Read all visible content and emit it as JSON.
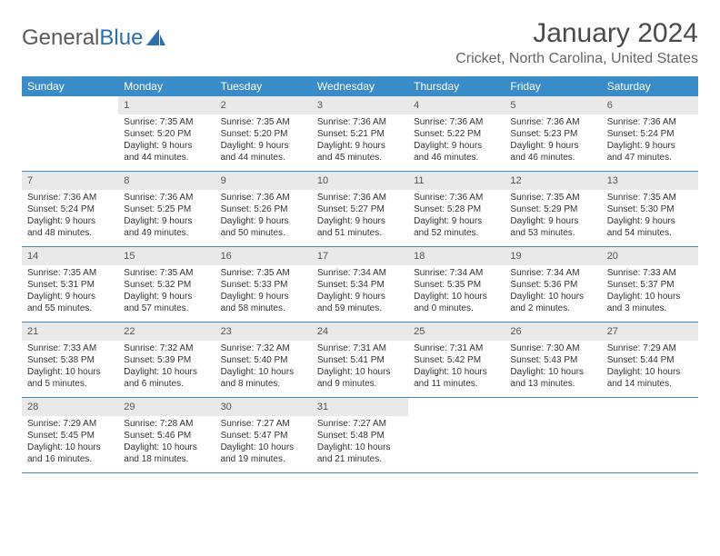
{
  "logo": {
    "text_gray": "General",
    "text_blue": "Blue"
  },
  "title": "January 2024",
  "location": "Cricket, North Carolina, United States",
  "colors": {
    "header_bg": "#3a8cc9",
    "header_text": "#ffffff",
    "daynum_bg": "#e9e9e9",
    "border": "#3a8cc9"
  },
  "day_headers": [
    "Sunday",
    "Monday",
    "Tuesday",
    "Wednesday",
    "Thursday",
    "Friday",
    "Saturday"
  ],
  "weeks": [
    [
      {
        "num": "",
        "sunrise": "",
        "sunset": "",
        "daylight1": "",
        "daylight2": ""
      },
      {
        "num": "1",
        "sunrise": "Sunrise: 7:35 AM",
        "sunset": "Sunset: 5:20 PM",
        "daylight1": "Daylight: 9 hours",
        "daylight2": "and 44 minutes."
      },
      {
        "num": "2",
        "sunrise": "Sunrise: 7:35 AM",
        "sunset": "Sunset: 5:20 PM",
        "daylight1": "Daylight: 9 hours",
        "daylight2": "and 44 minutes."
      },
      {
        "num": "3",
        "sunrise": "Sunrise: 7:36 AM",
        "sunset": "Sunset: 5:21 PM",
        "daylight1": "Daylight: 9 hours",
        "daylight2": "and 45 minutes."
      },
      {
        "num": "4",
        "sunrise": "Sunrise: 7:36 AM",
        "sunset": "Sunset: 5:22 PM",
        "daylight1": "Daylight: 9 hours",
        "daylight2": "and 46 minutes."
      },
      {
        "num": "5",
        "sunrise": "Sunrise: 7:36 AM",
        "sunset": "Sunset: 5:23 PM",
        "daylight1": "Daylight: 9 hours",
        "daylight2": "and 46 minutes."
      },
      {
        "num": "6",
        "sunrise": "Sunrise: 7:36 AM",
        "sunset": "Sunset: 5:24 PM",
        "daylight1": "Daylight: 9 hours",
        "daylight2": "and 47 minutes."
      }
    ],
    [
      {
        "num": "7",
        "sunrise": "Sunrise: 7:36 AM",
        "sunset": "Sunset: 5:24 PM",
        "daylight1": "Daylight: 9 hours",
        "daylight2": "and 48 minutes."
      },
      {
        "num": "8",
        "sunrise": "Sunrise: 7:36 AM",
        "sunset": "Sunset: 5:25 PM",
        "daylight1": "Daylight: 9 hours",
        "daylight2": "and 49 minutes."
      },
      {
        "num": "9",
        "sunrise": "Sunrise: 7:36 AM",
        "sunset": "Sunset: 5:26 PM",
        "daylight1": "Daylight: 9 hours",
        "daylight2": "and 50 minutes."
      },
      {
        "num": "10",
        "sunrise": "Sunrise: 7:36 AM",
        "sunset": "Sunset: 5:27 PM",
        "daylight1": "Daylight: 9 hours",
        "daylight2": "and 51 minutes."
      },
      {
        "num": "11",
        "sunrise": "Sunrise: 7:36 AM",
        "sunset": "Sunset: 5:28 PM",
        "daylight1": "Daylight: 9 hours",
        "daylight2": "and 52 minutes."
      },
      {
        "num": "12",
        "sunrise": "Sunrise: 7:35 AM",
        "sunset": "Sunset: 5:29 PM",
        "daylight1": "Daylight: 9 hours",
        "daylight2": "and 53 minutes."
      },
      {
        "num": "13",
        "sunrise": "Sunrise: 7:35 AM",
        "sunset": "Sunset: 5:30 PM",
        "daylight1": "Daylight: 9 hours",
        "daylight2": "and 54 minutes."
      }
    ],
    [
      {
        "num": "14",
        "sunrise": "Sunrise: 7:35 AM",
        "sunset": "Sunset: 5:31 PM",
        "daylight1": "Daylight: 9 hours",
        "daylight2": "and 55 minutes."
      },
      {
        "num": "15",
        "sunrise": "Sunrise: 7:35 AM",
        "sunset": "Sunset: 5:32 PM",
        "daylight1": "Daylight: 9 hours",
        "daylight2": "and 57 minutes."
      },
      {
        "num": "16",
        "sunrise": "Sunrise: 7:35 AM",
        "sunset": "Sunset: 5:33 PM",
        "daylight1": "Daylight: 9 hours",
        "daylight2": "and 58 minutes."
      },
      {
        "num": "17",
        "sunrise": "Sunrise: 7:34 AM",
        "sunset": "Sunset: 5:34 PM",
        "daylight1": "Daylight: 9 hours",
        "daylight2": "and 59 minutes."
      },
      {
        "num": "18",
        "sunrise": "Sunrise: 7:34 AM",
        "sunset": "Sunset: 5:35 PM",
        "daylight1": "Daylight: 10 hours",
        "daylight2": "and 0 minutes."
      },
      {
        "num": "19",
        "sunrise": "Sunrise: 7:34 AM",
        "sunset": "Sunset: 5:36 PM",
        "daylight1": "Daylight: 10 hours",
        "daylight2": "and 2 minutes."
      },
      {
        "num": "20",
        "sunrise": "Sunrise: 7:33 AM",
        "sunset": "Sunset: 5:37 PM",
        "daylight1": "Daylight: 10 hours",
        "daylight2": "and 3 minutes."
      }
    ],
    [
      {
        "num": "21",
        "sunrise": "Sunrise: 7:33 AM",
        "sunset": "Sunset: 5:38 PM",
        "daylight1": "Daylight: 10 hours",
        "daylight2": "and 5 minutes."
      },
      {
        "num": "22",
        "sunrise": "Sunrise: 7:32 AM",
        "sunset": "Sunset: 5:39 PM",
        "daylight1": "Daylight: 10 hours",
        "daylight2": "and 6 minutes."
      },
      {
        "num": "23",
        "sunrise": "Sunrise: 7:32 AM",
        "sunset": "Sunset: 5:40 PM",
        "daylight1": "Daylight: 10 hours",
        "daylight2": "and 8 minutes."
      },
      {
        "num": "24",
        "sunrise": "Sunrise: 7:31 AM",
        "sunset": "Sunset: 5:41 PM",
        "daylight1": "Daylight: 10 hours",
        "daylight2": "and 9 minutes."
      },
      {
        "num": "25",
        "sunrise": "Sunrise: 7:31 AM",
        "sunset": "Sunset: 5:42 PM",
        "daylight1": "Daylight: 10 hours",
        "daylight2": "and 11 minutes."
      },
      {
        "num": "26",
        "sunrise": "Sunrise: 7:30 AM",
        "sunset": "Sunset: 5:43 PM",
        "daylight1": "Daylight: 10 hours",
        "daylight2": "and 13 minutes."
      },
      {
        "num": "27",
        "sunrise": "Sunrise: 7:29 AM",
        "sunset": "Sunset: 5:44 PM",
        "daylight1": "Daylight: 10 hours",
        "daylight2": "and 14 minutes."
      }
    ],
    [
      {
        "num": "28",
        "sunrise": "Sunrise: 7:29 AM",
        "sunset": "Sunset: 5:45 PM",
        "daylight1": "Daylight: 10 hours",
        "daylight2": "and 16 minutes."
      },
      {
        "num": "29",
        "sunrise": "Sunrise: 7:28 AM",
        "sunset": "Sunset: 5:46 PM",
        "daylight1": "Daylight: 10 hours",
        "daylight2": "and 18 minutes."
      },
      {
        "num": "30",
        "sunrise": "Sunrise: 7:27 AM",
        "sunset": "Sunset: 5:47 PM",
        "daylight1": "Daylight: 10 hours",
        "daylight2": "and 19 minutes."
      },
      {
        "num": "31",
        "sunrise": "Sunrise: 7:27 AM",
        "sunset": "Sunset: 5:48 PM",
        "daylight1": "Daylight: 10 hours",
        "daylight2": "and 21 minutes."
      },
      {
        "num": "",
        "sunrise": "",
        "sunset": "",
        "daylight1": "",
        "daylight2": ""
      },
      {
        "num": "",
        "sunrise": "",
        "sunset": "",
        "daylight1": "",
        "daylight2": ""
      },
      {
        "num": "",
        "sunrise": "",
        "sunset": "",
        "daylight1": "",
        "daylight2": ""
      }
    ]
  ]
}
